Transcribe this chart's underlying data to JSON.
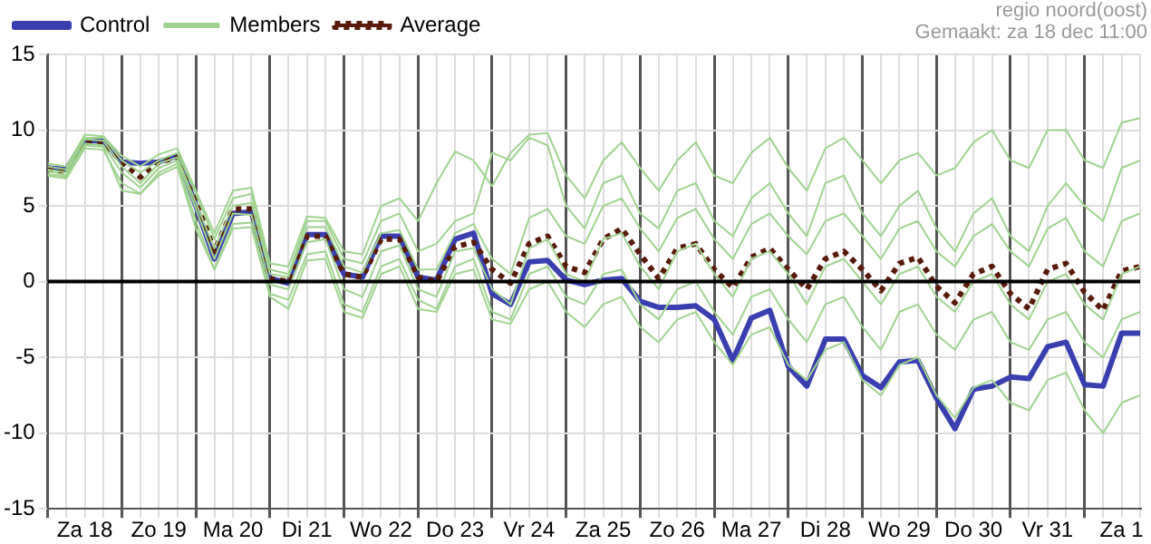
{
  "chart_data": {
    "type": "line",
    "annotations": [
      "regio noord(oost)",
      "Gemaakt: za 18 dec 11:00"
    ],
    "categories": [
      null,
      null,
      "Za 18",
      null,
      null,
      null,
      "Zo 19",
      null,
      null,
      null,
      "Ma 20",
      null,
      null,
      null,
      "Di 21",
      null,
      null,
      null,
      "Wo 22",
      null,
      null,
      null,
      "Do 23",
      null,
      null,
      null,
      "Vr 24",
      null,
      null,
      null,
      "Za 25",
      null,
      null,
      null,
      "Zo 26",
      null,
      null,
      null,
      "Ma 27",
      null,
      null,
      null,
      "Di 28",
      null,
      null,
      null,
      "Wo 29",
      null,
      null,
      null,
      "Do 30",
      null,
      null,
      null,
      "Vr 31",
      null,
      null,
      null,
      "Za 1",
      null
    ],
    "ylim": [
      -15,
      15
    ],
    "yticks": [
      -15,
      -10,
      -5,
      0,
      5,
      10,
      15
    ],
    "grid": true,
    "legend": "top left",
    "marker": "none",
    "ref_lines": [
      {
        "axis": "y",
        "value": 0,
        "color": "#000000"
      }
    ],
    "series": [
      {
        "name": "Members",
        "color": "#9fd48f",
        "line_style": "solid",
        "values": [
          7.8,
          7.6,
          9.7,
          9.6,
          8.3,
          7.6,
          8.4,
          8.8,
          6.0,
          3.2,
          6.0,
          6.2,
          1.2,
          1.0,
          4.3,
          4.2,
          2.0,
          1.8,
          5.0,
          5.5,
          4.0,
          6.5,
          8.6,
          8.0,
          6.3,
          8.5,
          9.7,
          9.8,
          7.0,
          5.5,
          8.0,
          9.2,
          7.5,
          6.0,
          8.0,
          9.2,
          7.0,
          6.5,
          8.5,
          9.5,
          7.5,
          6.0,
          8.8,
          9.5,
          8.0,
          6.5,
          8.0,
          8.5,
          7.0,
          7.5,
          9.2,
          10.0,
          8.0,
          7.5,
          10.0,
          10.0,
          8.0,
          7.5,
          10.5,
          10.8
        ]
      },
      {
        "color": "#9fd48f",
        "line_style": "solid",
        "values": [
          7.4,
          7.2,
          9.4,
          9.3,
          7.6,
          6.5,
          7.8,
          8.2,
          5.2,
          2.2,
          5.0,
          5.2,
          0.5,
          0.3,
          3.6,
          3.6,
          1.0,
          0.6,
          3.2,
          3.4,
          0.8,
          0.8,
          3.2,
          3.8,
          1.5,
          0.5,
          4.2,
          4.8,
          3.0,
          2.5,
          5.0,
          5.5,
          3.5,
          2.0,
          4.2,
          4.8,
          2.8,
          1.5,
          3.8,
          4.5,
          3.0,
          1.8,
          4.0,
          4.5,
          3.0,
          1.5,
          3.5,
          4.0,
          2.0,
          1.0,
          3.0,
          3.8,
          2.0,
          1.0,
          3.5,
          4.2,
          2.0,
          1.0,
          4.0,
          4.5
        ]
      },
      {
        "color": "#9fd48f",
        "line_style": "solid",
        "values": [
          7.3,
          7.0,
          9.1,
          9.0,
          7.2,
          6.2,
          7.5,
          8.0,
          4.8,
          1.5,
          4.5,
          4.4,
          -0.2,
          -0.5,
          2.6,
          2.8,
          -0.5,
          -1.0,
          2.0,
          2.4,
          -0.5,
          -1.0,
          2.0,
          2.2,
          -0.5,
          -1.5,
          2.2,
          2.8,
          0.5,
          0.0,
          2.8,
          3.2,
          1.0,
          -0.5,
          2.0,
          2.5,
          0.5,
          -1.0,
          1.5,
          2.0,
          0.5,
          -1.5,
          1.0,
          1.5,
          0.0,
          -1.5,
          0.5,
          1.0,
          -1.0,
          -2.0,
          0.0,
          0.5,
          -1.5,
          -2.5,
          0.0,
          0.5,
          -1.5,
          -2.5,
          0.5,
          1.0
        ]
      },
      {
        "color": "#9fd48f",
        "line_style": "solid",
        "values": [
          7.0,
          6.8,
          8.8,
          8.7,
          6.5,
          5.8,
          7.2,
          7.8,
          4.0,
          0.8,
          3.8,
          3.9,
          -0.8,
          -1.2,
          1.8,
          2.0,
          -1.5,
          -2.0,
          1.0,
          1.5,
          -1.2,
          -1.8,
          1.0,
          1.5,
          -2.0,
          -2.5,
          0.5,
          1.0,
          -1.0,
          -1.5,
          0.5,
          0.8,
          -1.5,
          -2.5,
          -0.5,
          0.0,
          -2.0,
          -3.5,
          -1.0,
          -0.5,
          -2.5,
          -4.0,
          -1.5,
          -1.0,
          -3.0,
          -4.5,
          -2.0,
          -1.5,
          -3.5,
          -4.5,
          -2.5,
          -2.0,
          -4.0,
          -4.5,
          -2.5,
          -2.0,
          -4.0,
          -5.0,
          -2.5,
          -2.0
        ]
      },
      {
        "color": "#9fd48f",
        "line_style": "solid",
        "values": [
          7.1,
          6.9,
          9.0,
          8.9,
          6.0,
          5.8,
          7.0,
          7.6,
          3.5,
          0.8,
          3.5,
          3.6,
          -1.0,
          -1.8,
          1.4,
          1.5,
          -2.0,
          -2.4,
          0.5,
          1.0,
          -1.8,
          -2.0,
          0.5,
          0.8,
          -2.5,
          -2.8,
          -0.5,
          0.0,
          -2.0,
          -3.0,
          -1.5,
          -1.0,
          -3.0,
          -4.0,
          -2.5,
          -2.0,
          -4.0,
          -5.5,
          -3.5,
          -3.0,
          -5.5,
          -6.5,
          -4.5,
          -4.0,
          -6.5,
          -7.5,
          -5.5,
          -5.0,
          -7.5,
          -9.0,
          -7.0,
          -6.5,
          -8.0,
          -8.5,
          -6.5,
          -6.0,
          -8.5,
          -10.0,
          -8.0,
          -7.5
        ]
      },
      {
        "color": "#9fd48f",
        "line_style": "solid",
        "values": [
          7.6,
          7.4,
          9.5,
          9.5,
          8.0,
          7.2,
          8.0,
          8.5,
          5.8,
          2.8,
          5.5,
          5.8,
          0.8,
          0.5,
          4.0,
          4.0,
          1.5,
          1.2,
          4.0,
          4.5,
          2.0,
          2.5,
          4.0,
          4.5,
          8.5,
          8.0,
          9.5,
          9.0,
          5.0,
          3.5,
          6.5,
          7.0,
          4.5,
          3.5,
          6.0,
          6.5,
          4.0,
          3.0,
          5.5,
          6.5,
          4.5,
          3.0,
          6.5,
          7.0,
          4.5,
          3.0,
          5.0,
          6.0,
          3.5,
          2.0,
          4.5,
          5.5,
          3.0,
          2.0,
          5.0,
          6.5,
          5.0,
          4.0,
          7.5,
          8.0
        ]
      },
      {
        "name": "Average",
        "color": "#5a1a0a",
        "line_style": "dotted",
        "values": [
          7.4,
          7.3,
          9.2,
          9.2,
          7.9,
          6.9,
          7.9,
          8.2,
          5.5,
          2.0,
          4.8,
          4.8,
          0.2,
          0.0,
          3.0,
          3.0,
          0.5,
          0.3,
          2.8,
          2.8,
          0.3,
          0.0,
          2.3,
          2.6,
          0.8,
          -0.1,
          2.5,
          3.0,
          1.0,
          0.6,
          2.8,
          3.5,
          1.8,
          0.2,
          2.2,
          2.5,
          0.8,
          -0.4,
          1.6,
          2.2,
          0.8,
          -0.5,
          1.5,
          2.0,
          0.8,
          -0.6,
          1.2,
          1.6,
          -0.3,
          -1.4,
          0.5,
          1.0,
          -0.8,
          -1.8,
          0.8,
          1.2,
          -0.7,
          -1.9,
          0.7,
          1.0
        ]
      },
      {
        "name": "Control",
        "color": "#3a3fb0",
        "line_style": "solid",
        "values": [
          7.5,
          7.4,
          9.3,
          9.3,
          7.9,
          7.8,
          7.9,
          8.3,
          5.0,
          1.5,
          4.5,
          4.6,
          0.2,
          -0.1,
          3.1,
          3.1,
          0.5,
          0.3,
          3.0,
          3.0,
          0.3,
          0.1,
          2.8,
          3.2,
          -0.8,
          -1.5,
          1.3,
          1.4,
          0.1,
          -0.2,
          0.1,
          0.2,
          -1.3,
          -1.7,
          -1.7,
          -1.6,
          -2.5,
          -5.2,
          -2.4,
          -1.9,
          -5.6,
          -6.9,
          -3.8,
          -3.8,
          -6.2,
          -7.0,
          -5.3,
          -5.2,
          -7.7,
          -9.7,
          -7.1,
          -6.9,
          -6.3,
          -6.4,
          -4.3,
          -4.0,
          -6.8,
          -6.9,
          -3.4,
          -3.4
        ]
      }
    ]
  }
}
